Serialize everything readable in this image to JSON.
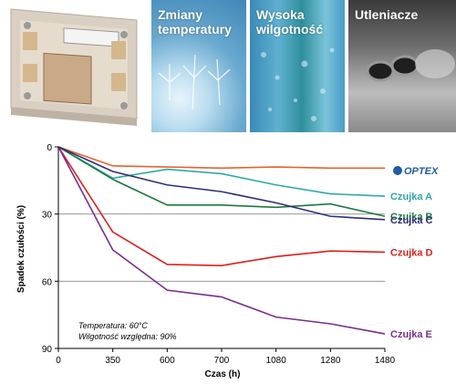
{
  "photos": {
    "sensor": {
      "label": ""
    },
    "temperature": {
      "label_line1": "Zmiany",
      "label_line2": "temperatury"
    },
    "humidity": {
      "label_line1": "Wysoka",
      "label_line2": "wilgotność"
    },
    "oxidants": {
      "label_line1": "Utleniacze"
    }
  },
  "logo_text": "OPTEX",
  "notes": {
    "temperature": "Temperatura:  60°C",
    "humidity": "Wilgotność względna:  90%"
  },
  "chart_data": {
    "type": "line",
    "title": "",
    "xlabel": "Czas (h)",
    "ylabel": "Spadek czułości (%)",
    "x_categories": [
      "0",
      "350",
      "600",
      "700",
      "1080",
      "1280",
      "1480"
    ],
    "y_ticks": [
      "0",
      "30",
      "60",
      "90"
    ],
    "ylim": [
      0,
      90
    ],
    "y_inverted": true,
    "grid": "horizontal at 30 and 60",
    "series": [
      {
        "name": "",
        "color": "#e8622a",
        "x": [
          0,
          1,
          2,
          3,
          4,
          5,
          6
        ],
        "values": [
          0,
          8.5,
          9,
          9.5,
          9,
          9.5,
          9.5
        ]
      },
      {
        "name": "Czujka A",
        "color": "#2ea8a8",
        "x": [
          0,
          1,
          2,
          3,
          4,
          5,
          6
        ],
        "values": [
          0,
          14,
          10,
          12,
          17,
          21,
          22
        ]
      },
      {
        "name": "Czujka B",
        "color": "#1a7a3c",
        "x": [
          0,
          1,
          2,
          3,
          4,
          5,
          6
        ],
        "values": [
          0,
          14.5,
          26,
          26,
          27,
          25.5,
          31
        ]
      },
      {
        "name": "Czujka C",
        "color": "#2e2d7a",
        "x": [
          0,
          1,
          2,
          3,
          4,
          5,
          6
        ],
        "values": [
          0,
          11,
          17,
          20,
          25,
          31,
          32.5
        ]
      },
      {
        "name": "Czujka D",
        "color": "#dd1e1e",
        "x": [
          0,
          1,
          2,
          3,
          4,
          5,
          6
        ],
        "values": [
          0,
          38,
          52.5,
          53,
          49,
          46.5,
          47
        ]
      },
      {
        "name": "Czujka E",
        "color": "#7b2d8f",
        "x": [
          0,
          1,
          2,
          3,
          4,
          5,
          6
        ],
        "values": [
          0,
          46,
          64,
          67,
          76,
          79,
          83.5
        ]
      }
    ]
  }
}
